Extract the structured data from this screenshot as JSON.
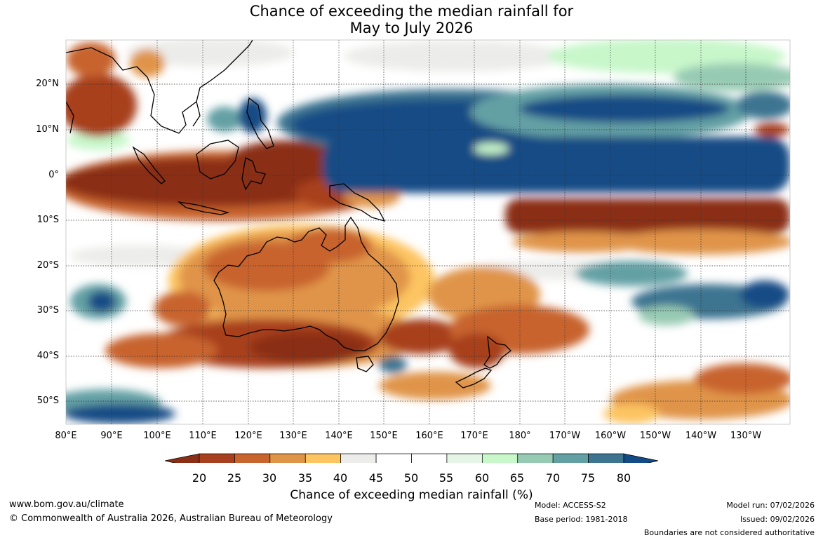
{
  "title": {
    "line1": "Chance of exceeding the median rainfall for",
    "line2": "May to July 2026"
  },
  "map": {
    "region": "Australia and Western Pacific",
    "lat_labels": [
      "20°N",
      "10°N",
      "0°",
      "10°S",
      "20°S",
      "30°S",
      "40°S",
      "50°S"
    ],
    "lon_labels": [
      "80°E",
      "90°E",
      "100°E",
      "110°E",
      "120°E",
      "130°E",
      "140°E",
      "150°E",
      "160°E",
      "170°E",
      "180°",
      "170°W",
      "160°W",
      "150°W",
      "140°W",
      "130°W"
    ]
  },
  "colorbar": {
    "ticks": [
      "20",
      "25",
      "30",
      "35",
      "40",
      "45",
      "50",
      "55",
      "60",
      "65",
      "70",
      "75",
      "80"
    ],
    "colors": [
      "#8b2e16",
      "#a8401f",
      "#c8642e",
      "#e09448",
      "#fdc462",
      "#ececea",
      "#ffffff",
      "#ffffff",
      "#e6f6e6",
      "#c8f7ca",
      "#97cab3",
      "#63a0a4",
      "#3d7591",
      "#124b85"
    ],
    "title": "Chance of exceeding median rainfall (%)"
  },
  "footer": {
    "website": "www.bom.gov.au/climate",
    "copyright": "© Commonwealth of Australia 2026, Australian Bureau of Meteorology",
    "model": "Model: ACCESS-S2",
    "base_period": "Base period: 1981-2018",
    "model_run": "Model run: 07/02/2026",
    "issued": "Issued: 09/02/2026",
    "disclaimer": "Boundaries are not considered authoritative"
  }
}
